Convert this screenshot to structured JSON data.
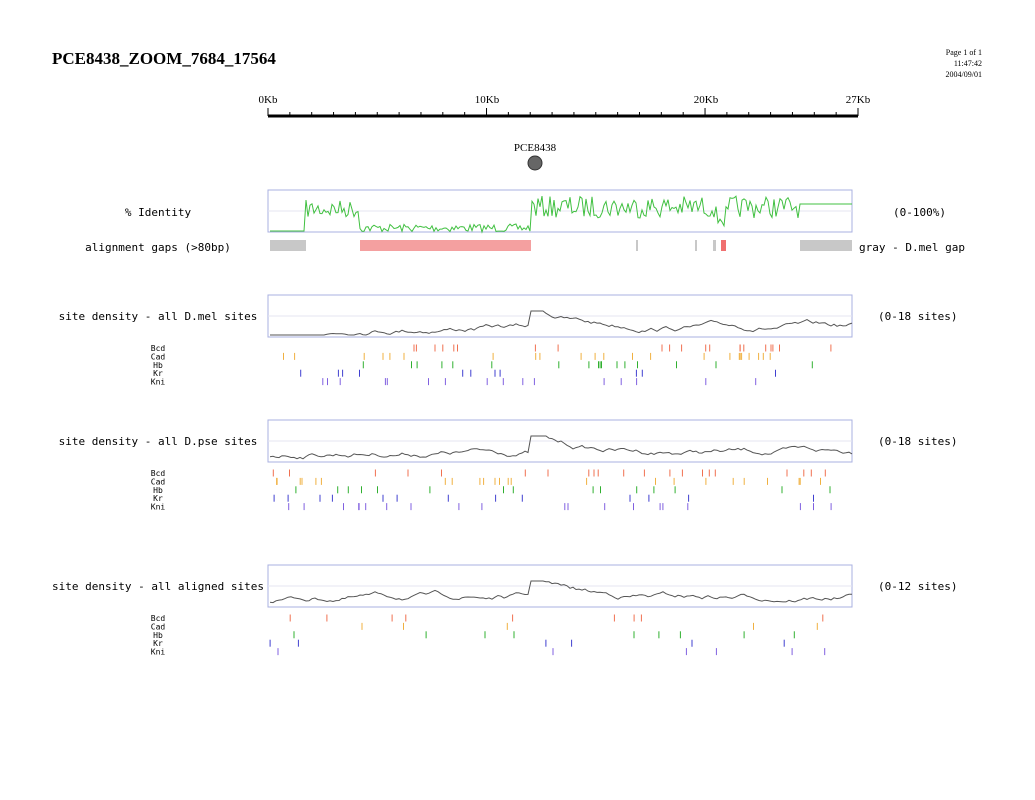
{
  "header": {
    "title": "PCE8438_ZOOM_7684_17564",
    "page": "Page 1 of 1",
    "time": "11:47:42",
    "date": "2004/09/01"
  },
  "scale": {
    "labels": [
      "0Kb",
      "10Kb",
      "20Kb",
      "27Kb"
    ]
  },
  "marker": {
    "label": "PCE8438"
  },
  "identity": {
    "label": "% Identity",
    "range": "(0-100%)"
  },
  "gaps": {
    "label": "alignment gaps (>80bp)",
    "legend": "gray - D.mel gap"
  },
  "tracks": [
    {
      "label": "site density - all D.mel sites",
      "range": "(0-18 sites)",
      "factors": [
        "Bcd",
        "Cad",
        "Hb",
        "Kr",
        "Kni"
      ]
    },
    {
      "label": "site density - all D.pse sites",
      "range": "(0-18 sites)",
      "factors": [
        "Bcd",
        "Cad",
        "Hb",
        "Kr",
        "Kni"
      ]
    },
    {
      "label": "site density - all aligned sites",
      "range": "(0-12 sites)",
      "factors": [
        "Bcd",
        "Cad",
        "Hb",
        "Kr",
        "Kni"
      ]
    }
  ]
}
